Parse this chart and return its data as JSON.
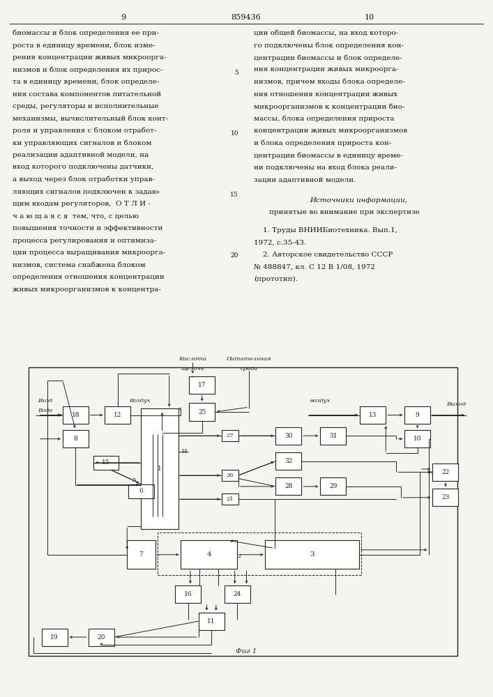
{
  "bg_color": "#f5f5f0",
  "text_color": "#111111",
  "dc": "#222222",
  "page_num_left": "9",
  "page_num_center": "859436",
  "page_num_right": "10",
  "left_col_text": [
    "биомассы и блок определения ее при-",
    "роста в единицу времени, блок изме-",
    "рения концентрации живых микроорга-",
    "низмов и блок определения их прирос-",
    "та в единицу времени, блок определе-",
    "ния состава компонентов питательной",
    "среды, регуляторы и исполнительные",
    "механизмы, вычислительный блок конт-",
    "роля и управления с блоком отработ-",
    "ки управляющих сигналов и блоком",
    "реализации адаптивной модели, на",
    "вход которого подключены датчики,",
    "а выход через блок отработки управ-",
    "ляющих сигналов подключен к задаю-",
    "щим входам регуляторов,  О Т Л И -",
    "ч а ю щ а я с я  тем, что, с целью",
    "повышения точности и эффективности",
    "процесса регулирования и оптимиза-",
    "ции процесса выращивания микроорга-",
    "низмов, система снабжена блоком",
    "определения отношения концентрации",
    "живых микроорганизмов к концентра-"
  ],
  "right_col_text": [
    "ции общей биомассы, на вход которо-",
    "го подключены блок определения кон-",
    "центрации биомассы и блок определе-",
    "ния концентрации живых микроорга-",
    "низмов, причем входы блока определе-",
    "ния отношения концентрации живых",
    "микроорганизмов к концентрации био-",
    "массы, блока определения прироста",
    "концентрации живых микроорганизмов",
    "и блока определения прироста кон-",
    "центрации биомассы в единицу време-",
    "ни подключены на вход блока реали-",
    "зации адаптивной модели."
  ],
  "line_numbers": [
    "5",
    "10",
    "15",
    "20"
  ],
  "line_number_rows": [
    4,
    9,
    14,
    19
  ],
  "sources_title": "Источники информации,",
  "sources_subtitle": "принятые во внимание при экспертизе",
  "sources": [
    "    1. Труды ВНИИБиотехника. Вып.1,",
    "1972, с.35-43.",
    "    2. Авторское свидетельство СССР",
    "№ 488847, кл. С 12 В 1/08, 1972",
    "(прототип)."
  ],
  "fig_caption": "Фиг 1",
  "lbl_kislota": "Кислота",
  "lbl_shcheloch": "щелочь",
  "lbl_pita1": "Питательная",
  "lbl_pita2": "среда",
  "lbl_vhod": "Вход",
  "lbl_voda": "Вода",
  "lbl_vozduh_l": "Воздух",
  "lbl_vozduh_r": "воздух",
  "lbl_vyhod": "Выход"
}
